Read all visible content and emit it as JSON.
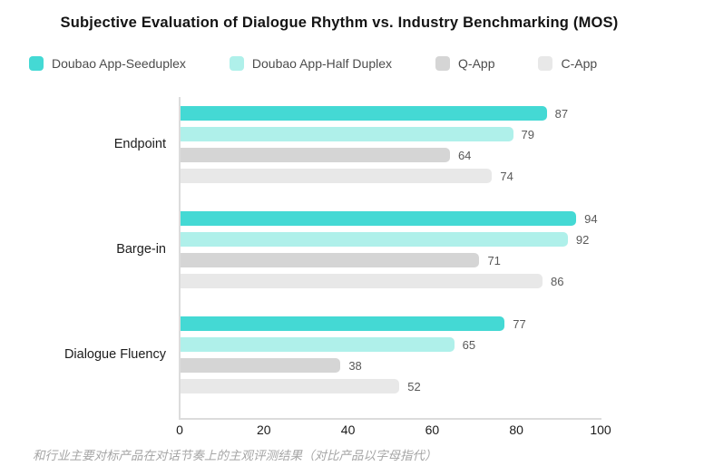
{
  "title": "Subjective Evaluation of Dialogue Rhythm vs. Industry Benchmarking (MOS)",
  "footer": "和行业主要对标产品在对话节奏上的主观评测结果（对比产品以字母指代）",
  "colors": {
    "axis_line": "#dcdcdc",
    "value_label": "#595959",
    "category_label": "#1d1d1d",
    "footer_text": "#a6a6a6"
  },
  "chart_data": {
    "type": "bar",
    "orientation": "horizontal",
    "title": "Subjective Evaluation of Dialogue Rhythm vs. Industry Benchmarking (MOS)",
    "categories": [
      "Endpoint",
      "Barge-in",
      "Dialogue Fluency"
    ],
    "series": [
      {
        "name": "Doubao App-Seeduplex",
        "color": "#44d9d4",
        "values": [
          87,
          94,
          77
        ]
      },
      {
        "name": "Doubao App-Half Duplex",
        "color": "#aff0ea",
        "values": [
          79,
          92,
          65
        ]
      },
      {
        "name": "Q-App",
        "color": "#d5d5d5",
        "values": [
          64,
          71,
          38
        ]
      },
      {
        "name": "C-App",
        "color": "#e8e8e8",
        "values": [
          74,
          86,
          52
        ]
      }
    ],
    "xlim": [
      0,
      100
    ],
    "xticks": [
      0,
      20,
      40,
      60,
      80,
      100
    ],
    "value_labels": true,
    "legend_position": "top",
    "grid": false
  }
}
